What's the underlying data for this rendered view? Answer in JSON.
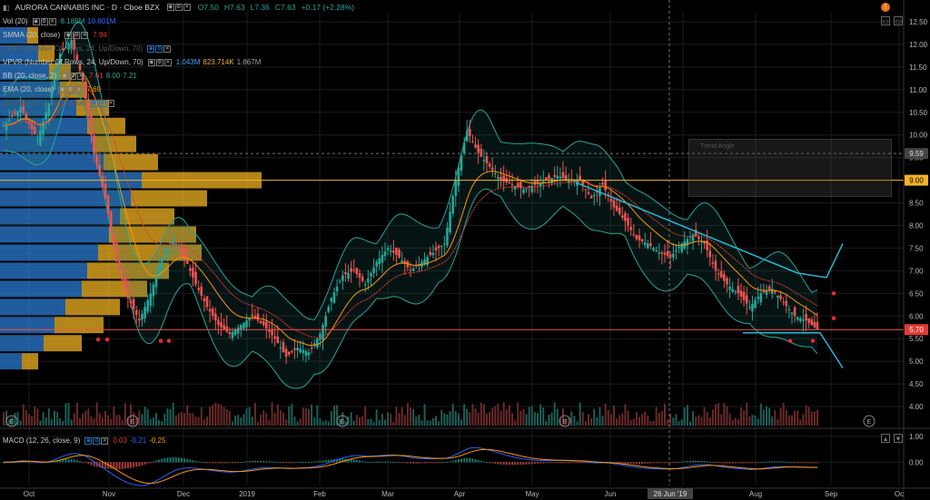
{
  "header": {
    "symbol": "AURORA CANNABIS INC · D · Cboe BZX",
    "open": "O7.50",
    "high": "H7.63",
    "low": "L7.36",
    "close": "C7.63",
    "change": "+0.17 (+2.28%)"
  },
  "indicators": [
    {
      "label": "Vol (20)",
      "values": [
        "8.188M",
        "10.801M"
      ],
      "colors": [
        "#26a69a",
        "#2962ff"
      ]
    },
    {
      "label": "SMMA (20, close)",
      "values": [
        "7.94"
      ],
      "colors": [
        "#e53935"
      ]
    },
    {
      "label": "VPSV (Number Of Rows, 24, Up/Down, 70)",
      "values": [],
      "colors": [],
      "dim": true
    },
    {
      "label": "VPVR (Number Of Rows, 24, Up/Down, 70)",
      "values": [
        "1.043M",
        "823.714K",
        "1.867M"
      ],
      "colors": [
        "#42a5f5",
        "#f0b323",
        "#9e9e9e"
      ]
    },
    {
      "label": "BB (20, close, 2)",
      "values": [
        "7.61",
        "8.00",
        "7.21"
      ],
      "colors": [
        "#e53935",
        "#26a69a",
        "#26a69a"
      ]
    },
    {
      "label": "EMA (20, close)",
      "values": [
        "7.69"
      ],
      "colors": [
        "#ff9800"
      ]
    },
    {
      "label": "Lin Reg (2, -2, 100, close)",
      "values": [],
      "colors": [],
      "dim": true
    }
  ],
  "macd": {
    "label": "MACD (12, 26, close, 9)",
    "values": [
      "0.03",
      "-0.21",
      "-0.25"
    ],
    "colors": [
      "#e53935",
      "#2962ff",
      "#ff9800"
    ]
  },
  "price_tags": {
    "last": "5.70",
    "level": "9.00",
    "crosshair": "9.59"
  },
  "crosshair_date": "26 Jun '19",
  "drawing_tooltip": "Trend Angle",
  "earnings_marker": "E",
  "chart_data": {
    "type": "candlestick",
    "y_ticks": [
      "12.50",
      "12.00",
      "11.50",
      "11.00",
      "10.50",
      "10.00",
      "9.50",
      "9.00",
      "8.50",
      "8.00",
      "7.50",
      "7.00",
      "6.50",
      "6.00",
      "5.50",
      "5.00",
      "4.50",
      "4.00"
    ],
    "macd_ticks": [
      "1.00",
      "0.00"
    ],
    "x_ticks": [
      "Oct",
      "Nov",
      "Dec",
      "2019",
      "Feb",
      "Mar",
      "Apr",
      "May",
      "Jun",
      "Jul",
      "Aug",
      "Sep",
      "Oc"
    ],
    "ylim": [
      3.7,
      12.7
    ],
    "macd_ylim": [
      -0.9,
      1.1
    ],
    "close_path": [
      [
        0,
        10.2
      ],
      [
        6,
        10.6
      ],
      [
        12,
        9.9
      ],
      [
        16,
        10.7
      ],
      [
        20,
        11.8
      ],
      [
        24,
        12.1
      ],
      [
        28,
        11.2
      ],
      [
        32,
        9.6
      ],
      [
        36,
        8.6
      ],
      [
        40,
        7.2
      ],
      [
        44,
        6.4
      ],
      [
        48,
        5.9
      ],
      [
        52,
        6.5
      ],
      [
        56,
        7.3
      ],
      [
        60,
        7.7
      ],
      [
        64,
        7.3
      ],
      [
        68,
        6.7
      ],
      [
        72,
        6.2
      ],
      [
        76,
        5.8
      ],
      [
        80,
        5.6
      ],
      [
        84,
        5.8
      ],
      [
        88,
        6.0
      ],
      [
        92,
        5.8
      ],
      [
        96,
        5.5
      ],
      [
        100,
        5.1
      ],
      [
        104,
        5.3
      ],
      [
        108,
        5.2
      ],
      [
        112,
        5.6
      ],
      [
        116,
        6.4
      ],
      [
        120,
        6.9
      ],
      [
        124,
        7.0
      ],
      [
        128,
        6.7
      ],
      [
        132,
        7.2
      ],
      [
        136,
        7.5
      ],
      [
        140,
        7.3
      ],
      [
        144,
        7.0
      ],
      [
        148,
        7.2
      ],
      [
        152,
        7.4
      ],
      [
        156,
        7.6
      ],
      [
        160,
        9.0
      ],
      [
        164,
        10.1
      ],
      [
        168,
        9.6
      ],
      [
        172,
        9.3
      ],
      [
        176,
        9.0
      ],
      [
        180,
        8.9
      ],
      [
        184,
        8.8
      ],
      [
        188,
        8.9
      ],
      [
        192,
        9.0
      ],
      [
        196,
        9.1
      ],
      [
        200,
        9.0
      ],
      [
        204,
        9.0
      ],
      [
        208,
        8.6
      ],
      [
        212,
        8.9
      ],
      [
        216,
        8.4
      ],
      [
        220,
        8.1
      ],
      [
        224,
        7.7
      ],
      [
        228,
        7.6
      ],
      [
        232,
        7.4
      ],
      [
        236,
        7.3
      ],
      [
        240,
        7.6
      ],
      [
        244,
        7.8
      ],
      [
        248,
        7.6
      ],
      [
        252,
        7.0
      ],
      [
        256,
        6.7
      ],
      [
        260,
        6.5
      ],
      [
        264,
        6.2
      ],
      [
        268,
        6.5
      ],
      [
        272,
        6.6
      ],
      [
        276,
        6.3
      ],
      [
        280,
        6.0
      ],
      [
        284,
        5.9
      ],
      [
        288,
        5.7
      ]
    ],
    "volume_profile": [
      {
        "price": 12.2,
        "up": 0.5,
        "down": 0.2
      },
      {
        "price": 11.8,
        "up": 0.7,
        "down": 0.3
      },
      {
        "price": 11.4,
        "up": 0.9,
        "down": 0.4
      },
      {
        "price": 11.0,
        "up": 1.1,
        "down": 0.5
      },
      {
        "price": 10.6,
        "up": 1.4,
        "down": 0.6
      },
      {
        "price": 10.2,
        "up": 1.6,
        "down": 0.7
      },
      {
        "price": 9.8,
        "up": 1.7,
        "down": 0.8
      },
      {
        "price": 9.4,
        "up": 1.9,
        "down": 1.0
      },
      {
        "price": 9.0,
        "up": 2.6,
        "down": 2.2
      },
      {
        "price": 8.6,
        "up": 2.4,
        "down": 1.4
      },
      {
        "price": 8.2,
        "up": 2.2,
        "down": 1.0
      },
      {
        "price": 7.8,
        "up": 2.0,
        "down": 1.6
      },
      {
        "price": 7.4,
        "up": 1.8,
        "down": 1.9
      },
      {
        "price": 7.0,
        "up": 1.6,
        "down": 1.5
      },
      {
        "price": 6.6,
        "up": 1.5,
        "down": 1.2
      },
      {
        "price": 6.2,
        "up": 1.2,
        "down": 1.0
      },
      {
        "price": 5.8,
        "up": 1.0,
        "down": 0.9
      },
      {
        "price": 5.4,
        "up": 0.8,
        "down": 0.7
      },
      {
        "price": 5.0,
        "up": 0.4,
        "down": 0.3
      }
    ],
    "colors": {
      "up": "#26a69a",
      "down": "#ef5350",
      "bb": "#26a69a",
      "ema": "#ff9800",
      "smma": "#e53935",
      "trend": "#29b6d6",
      "vp_up": "#2b7bd0",
      "vp_down": "#f0b323"
    }
  }
}
